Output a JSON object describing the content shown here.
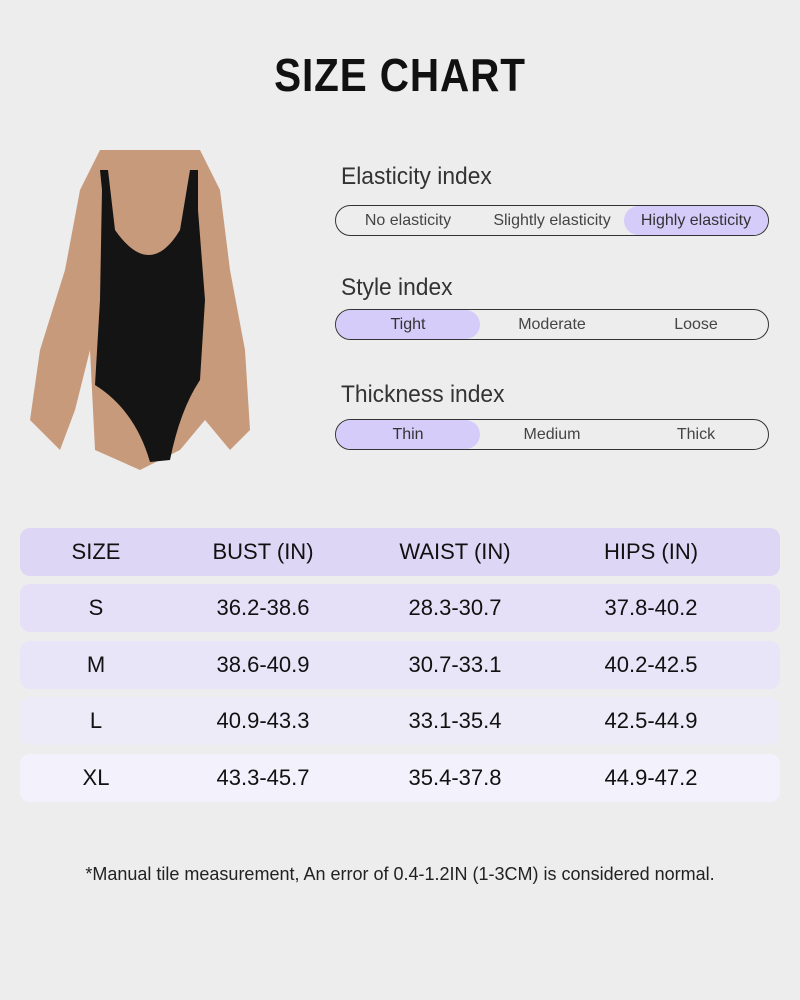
{
  "title": "SIZE CHART",
  "indices": [
    {
      "label": "Elasticity index",
      "options": [
        "No elasticity",
        "Slightly elasticity",
        "Highly elasticity"
      ],
      "selected": 2
    },
    {
      "label": "Style index",
      "options": [
        "Tight",
        "Moderate",
        "Loose"
      ],
      "selected": 0
    },
    {
      "label": "Thickness index",
      "options": [
        "Thin",
        "Medium",
        "Thick"
      ],
      "selected": 0
    }
  ],
  "table": {
    "headers": [
      "SIZE",
      "BUST (IN)",
      "WAIST (IN)",
      "HIPS (IN)"
    ],
    "rows": [
      [
        "S",
        "36.2-38.6",
        "28.3-30.7",
        "37.8-40.2"
      ],
      [
        "M",
        "38.6-40.9",
        "30.7-33.1",
        "40.2-42.5"
      ],
      [
        "L",
        "40.9-43.3",
        "33.1-35.4",
        "42.5-44.9"
      ],
      [
        "XL",
        "43.3-45.7",
        "35.4-37.8",
        "44.9-47.2"
      ]
    ]
  },
  "colors": {
    "accent": "#d6ccfa",
    "header_row": "#ddd6f5",
    "row_shades": [
      "#e5e0f8",
      "#e9e5f8",
      "#eeebf9",
      "#f3f1fb"
    ],
    "background": "#ededed"
  },
  "note": "*Manual tile measurement, An error of 0.4-1.2IN (1-3CM) is considered normal."
}
